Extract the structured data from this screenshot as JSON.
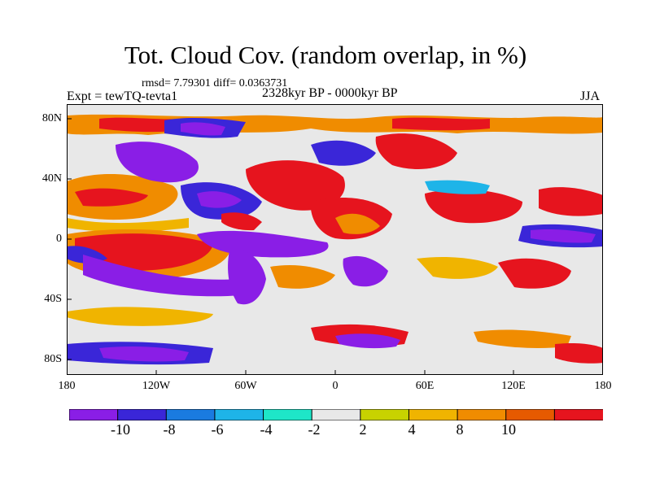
{
  "header": {
    "title": "Tot. Cloud Cov. (random overlap, in %)",
    "stats": "rmsd= 7.79301 diff= 0.0363731",
    "expt": "Expt = tewTQ-tevta1",
    "period": "2328kyr BP - 0000kyr BP",
    "season": "JJA"
  },
  "axes": {
    "y_ticks": [
      "80N",
      "40N",
      "0",
      "40S",
      "80S"
    ],
    "x_ticks": [
      "180",
      "120W",
      "60W",
      "0",
      "60E",
      "120E",
      "180"
    ]
  },
  "colorbar": {
    "ticks": [
      "-10",
      "-8",
      "-6",
      "-4",
      "-2",
      "2",
      "4",
      "8",
      "10"
    ],
    "colors": [
      "#8a1ee6",
      "#3a26d8",
      "#1a7be0",
      "#1eb4e8",
      "#1ee6c8",
      "#e8e8e8",
      "#c8d200",
      "#f0b400",
      "#f08c00",
      "#e65a00",
      "#e6141e"
    ]
  }
}
